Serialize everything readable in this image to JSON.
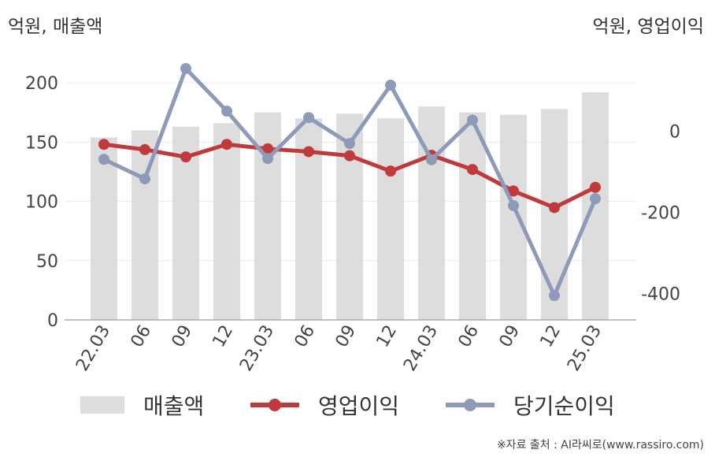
{
  "chart_data": {
    "type": "bar",
    "left_axis_label": "억원, 매출액",
    "right_axis_label": "억원, 영업이익",
    "categories": [
      "22.03",
      "06",
      "09",
      "12",
      "23.03",
      "06",
      "09",
      "12",
      "24.03",
      "06",
      "09",
      "12",
      "25.03"
    ],
    "left_axis": {
      "ticks": [
        0,
        50,
        100,
        150,
        200
      ],
      "range": [
        0,
        220
      ]
    },
    "right_axis": {
      "ticks": [
        0,
        -200,
        -400
      ],
      "range": [
        -465,
        120
      ]
    },
    "series": [
      {
        "name": "매출액",
        "type": "bar",
        "axis": "left",
        "color": "#dddddd",
        "values": [
          154,
          160,
          163,
          166,
          175,
          170,
          174,
          170,
          180,
          175,
          173,
          178,
          192
        ]
      },
      {
        "name": "영업이익",
        "type": "line",
        "axis": "right",
        "color": "#c0393b",
        "values": [
          -32,
          -45,
          -63,
          -32,
          -43,
          -50,
          -60,
          -98,
          -59,
          -94,
          -147,
          -188,
          -138
        ]
      },
      {
        "name": "당기순이익",
        "type": "line",
        "axis": "right",
        "color": "#8e9bb8",
        "values": [
          -69,
          -117,
          155,
          50,
          -67,
          34,
          -30,
          114,
          -70,
          28,
          -183,
          -405,
          -166
        ]
      }
    ],
    "grid": true,
    "legend_position": "bottom"
  },
  "source_text": "※자료 출처 : AI라씨로(www.rassiro.com)"
}
